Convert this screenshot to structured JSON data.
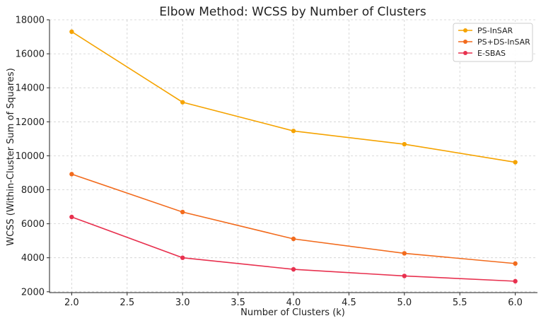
{
  "chart_data": {
    "type": "line",
    "title": "Elbow Method: WCSS by Number of Clusters",
    "xlabel": "Number of Clusters (k)",
    "ylabel": "WCSS (Within-Cluster Sum of Squares)",
    "x": [
      2,
      3,
      4,
      5,
      6
    ],
    "xlim": [
      1.8,
      6.2
    ],
    "ylim": [
      1950,
      18000
    ],
    "xticks": [
      "2.0",
      "2.5",
      "3.0",
      "3.5",
      "4.0",
      "4.5",
      "5.0",
      "5.5",
      "6.0"
    ],
    "yticks": [
      "2000",
      "4000",
      "6000",
      "8000",
      "10000",
      "12000",
      "14000",
      "16000",
      "18000"
    ],
    "grid": true,
    "legend_position": "top-right",
    "series": [
      {
        "name": "PS-InSAR",
        "color": "#f5a300",
        "values": [
          17300,
          13150,
          11460,
          10680,
          9620
        ]
      },
      {
        "name": "PS+DS-InSAR",
        "color": "#f26b1d",
        "values": [
          8920,
          6690,
          5110,
          4260,
          3660
        ]
      },
      {
        "name": "E-SBAS",
        "color": "#e8314f",
        "values": [
          6400,
          4000,
          3320,
          2930,
          2620
        ]
      }
    ]
  }
}
